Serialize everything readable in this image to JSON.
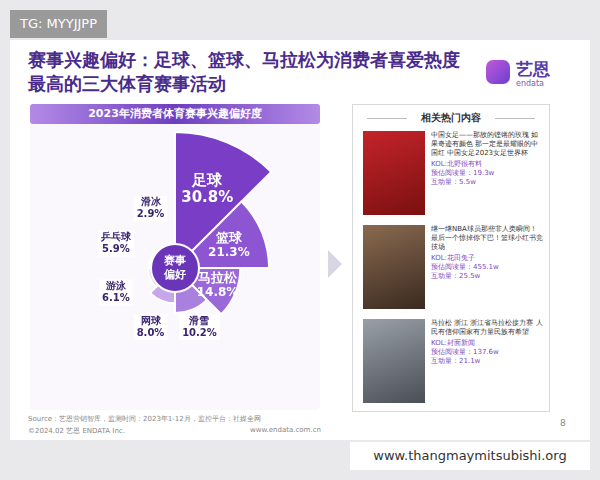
{
  "watermark_top": "TG: MYYJJPP",
  "watermark_bottom": "www.thangmaymitsubishi.org",
  "title": "赛事兴趣偏好：足球、篮球、马拉松为消费者喜爱热度最高的三大体育赛事活动",
  "logo": {
    "name": "艺恩",
    "sub": "endata"
  },
  "chart_data": {
    "type": "polarArea",
    "title": "2023年消费者体育赛事兴趣偏好度",
    "annotation": "赛事偏好",
    "categories": [
      "足球",
      "篮球",
      "马拉松",
      "滑雪",
      "网球",
      "游泳",
      "乒乓球",
      "滑冰"
    ],
    "values": [
      30.8,
      21.3,
      14.8,
      10.2,
      8.0,
      6.1,
      5.9,
      2.9
    ],
    "value_labels": [
      "30.8%",
      "21.3%",
      "14.8%",
      "10.2%",
      "8.0%",
      "6.1%",
      "5.9%",
      "2.9%"
    ],
    "colors": [
      "#7a3ec6",
      "#8d55d2",
      "#9a68d8",
      "#a97fdf",
      "#c5a7ea",
      "#e2d4f4",
      "#efe8f9",
      "#f8f5fc"
    ],
    "data_labels": true,
    "tick_labels": false,
    "grid": false
  },
  "side_panel": {
    "title": "相关热门内容",
    "items": [
      {
        "text": "中国女足——那故的铿锵的玫瑰 如果奇迹有颜色 那一定是最耀眼的中国红 中国女足2023女足世界杯",
        "kol": "KOL:北野很有料",
        "reads": "预估阅读量：19.3w",
        "engagement": "互动量：5.5w"
      },
      {
        "text": "继一继NBA球员那些非人类瞬间！最后一个惊掉你下巴！篮球小红书竞技场",
        "kol": "KOL:花田兔子",
        "reads": "预估阅读量：455.1w",
        "engagement": "互动量：25.5w"
      },
      {
        "text": "马拉松 浙江 浙江省马拉松接力赛 人民有信仰国家有力量民族有希望",
        "kol": "KOL:封面新闻",
        "reads": "预估阅读量：137.6w",
        "engagement": "互动量：21.1w"
      }
    ]
  },
  "footer": {
    "source": "Source：艺恩营销智库，监测时间：2023年1-12月，监控平台：社媒全网",
    "copyright": "©2024.02 艺恩 ENDATA Inc.",
    "website": "www.endata.com.cn",
    "page": "8"
  }
}
